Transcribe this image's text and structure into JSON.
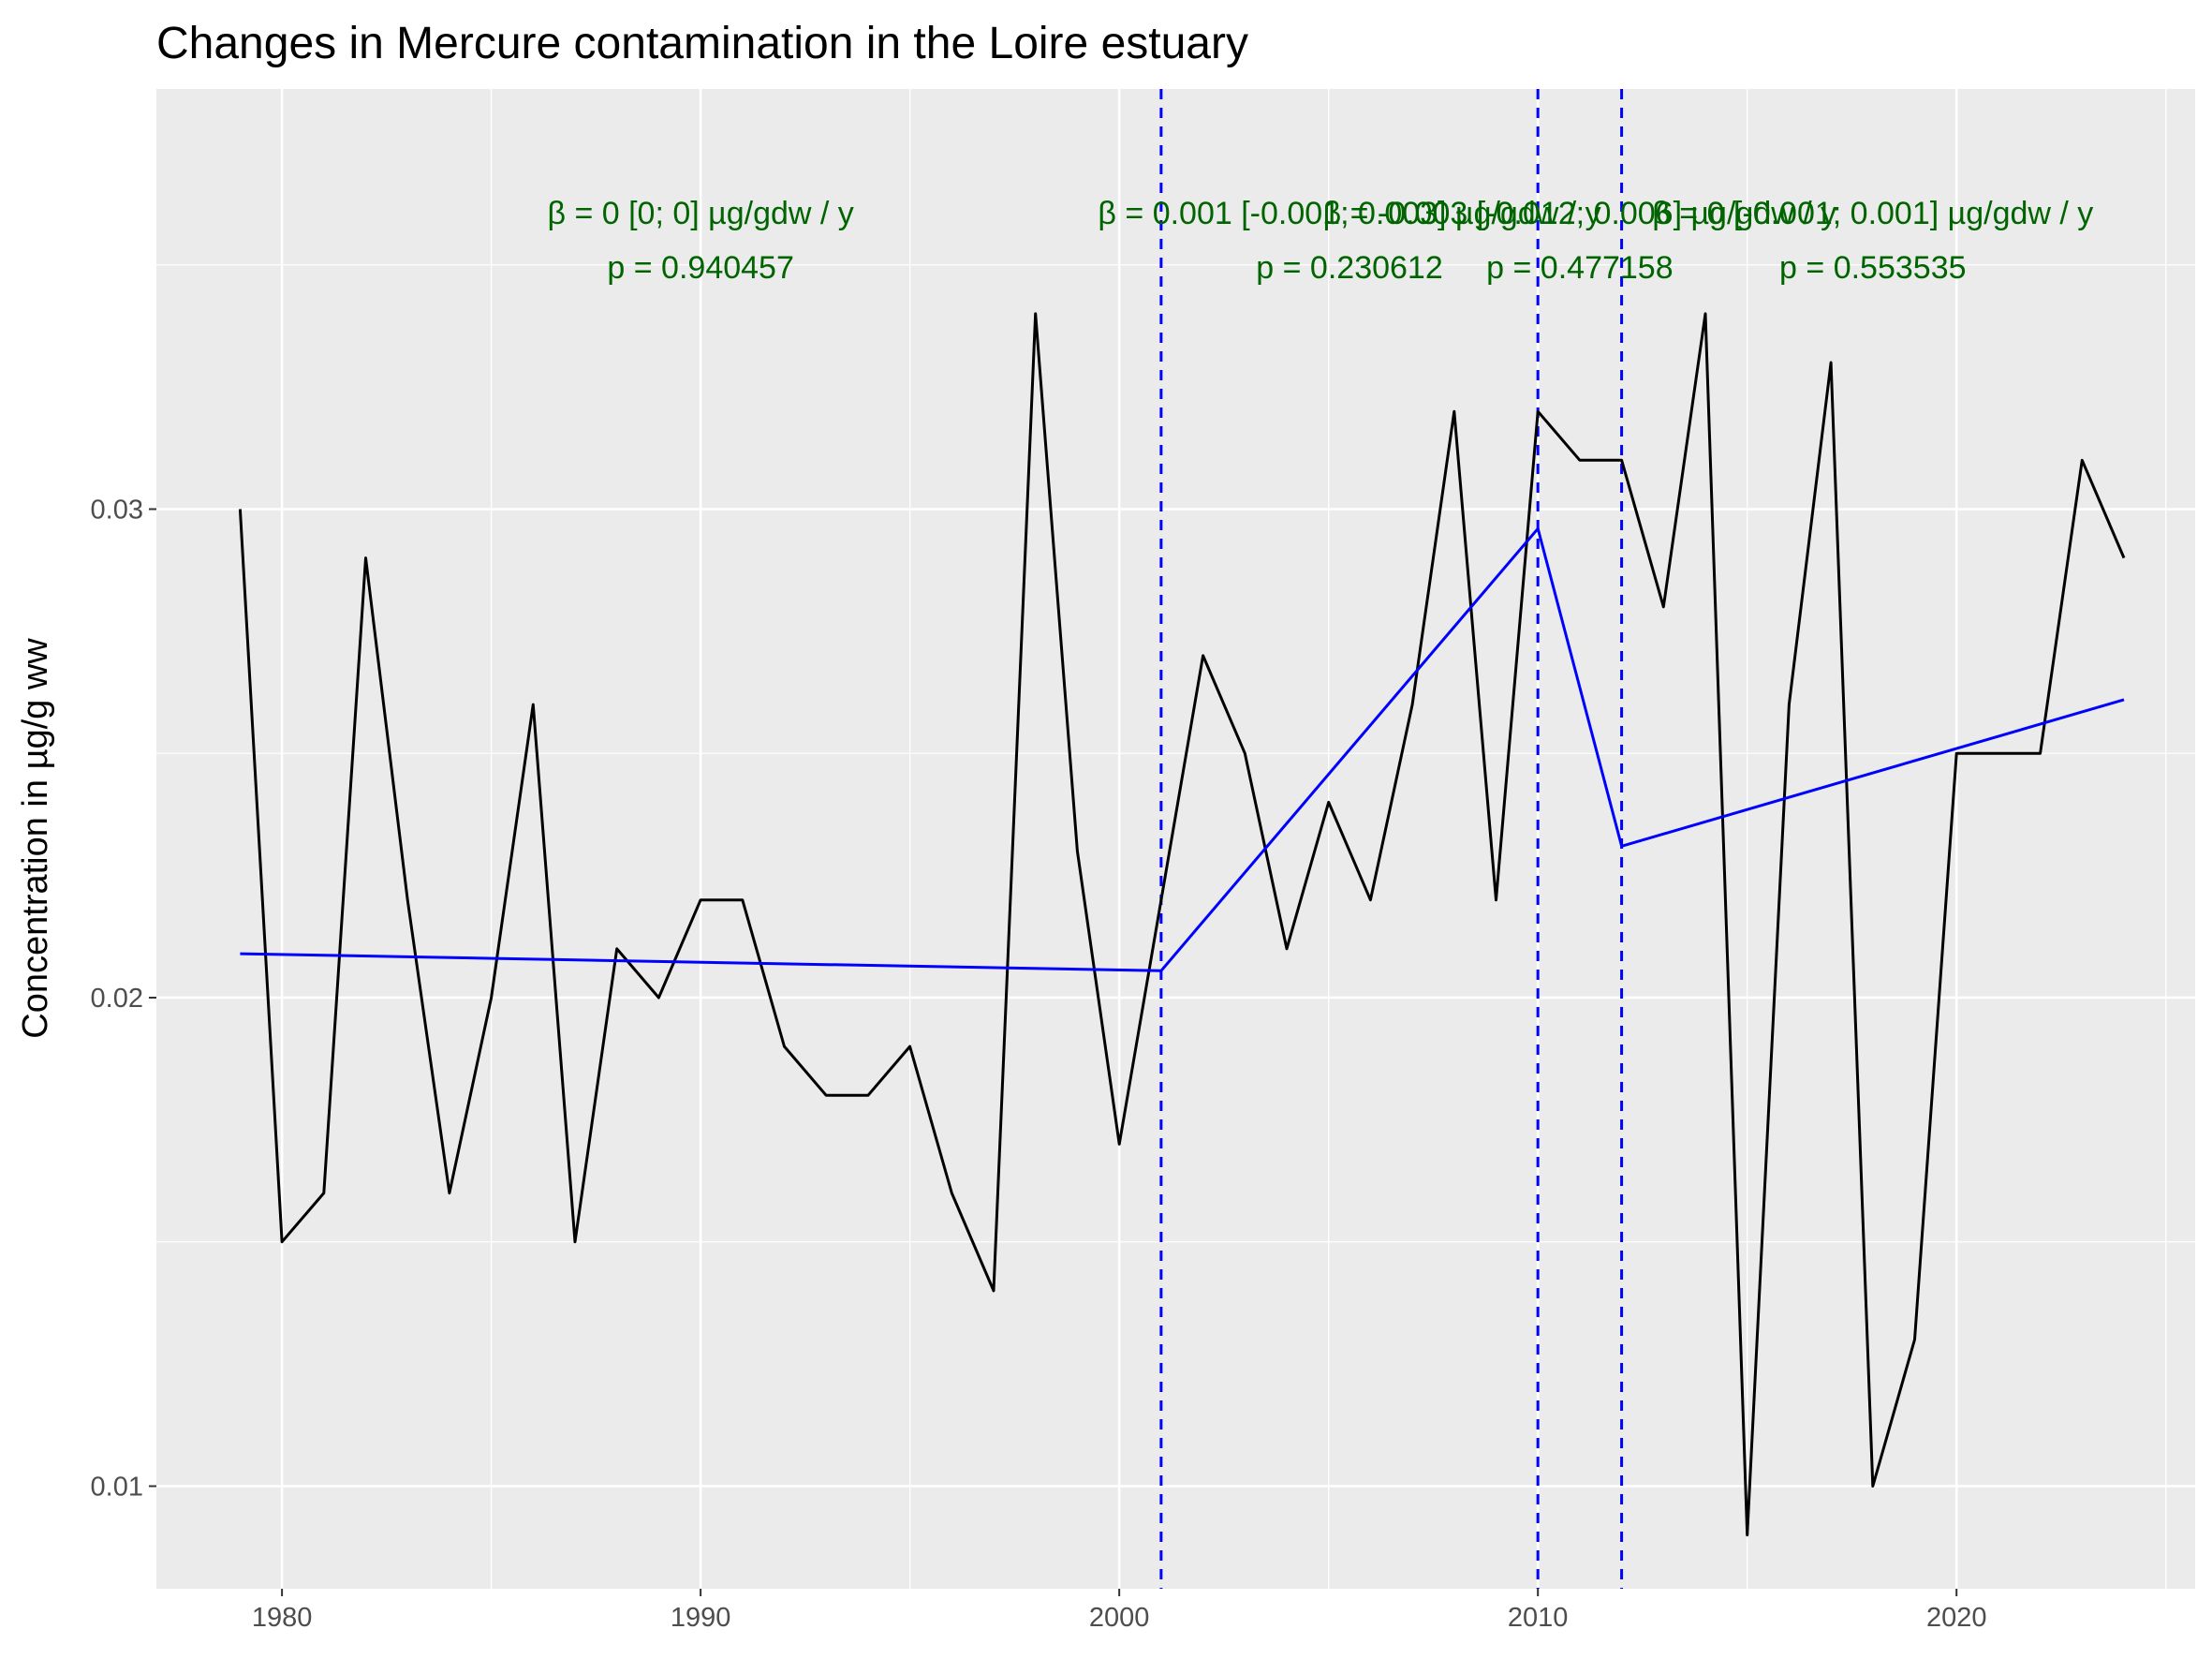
{
  "chart_data": {
    "type": "line",
    "title": "Changes in Mercure contamination in the Loire estuary",
    "xlabel": "",
    "ylabel": "Concentration in µg/g ww",
    "xlim": [
      1977,
      2025.7
    ],
    "ylim": [
      0.0079,
      0.0386
    ],
    "x_ticks": [
      1980,
      1990,
      2000,
      2010,
      2020
    ],
    "x_tick_labels": [
      "1980",
      "1990",
      "2000",
      "2010",
      "2020"
    ],
    "y_ticks": [
      0.01,
      0.02,
      0.03
    ],
    "y_tick_labels": [
      "0.01",
      "0.02",
      "0.03"
    ],
    "grid": true,
    "series": [
      {
        "color": "#000000",
        "points": [
          [
            1979,
            0.03
          ],
          [
            1980,
            0.015
          ],
          [
            1981,
            0.016
          ],
          [
            1982,
            0.029
          ],
          [
            1983,
            0.022
          ],
          [
            1984,
            0.016
          ],
          [
            1985,
            0.02
          ],
          [
            1986,
            0.026
          ],
          [
            1987,
            0.015
          ],
          [
            1988,
            0.021
          ],
          [
            1989,
            0.02
          ],
          [
            1990,
            0.022
          ],
          [
            1991,
            0.022
          ],
          [
            1992,
            0.019
          ],
          [
            1993,
            0.018
          ],
          [
            1994,
            0.018
          ],
          [
            1995,
            0.019
          ],
          [
            1996,
            0.016
          ],
          [
            1997,
            0.014
          ],
          [
            1998,
            0.034
          ],
          [
            1999,
            0.023
          ],
          [
            2000,
            0.017
          ],
          [
            2001,
            0.022
          ],
          [
            2002,
            0.027
          ],
          [
            2003,
            0.025
          ],
          [
            2004,
            0.021
          ],
          [
            2005,
            0.024
          ],
          [
            2006,
            0.022
          ],
          [
            2007,
            0.026
          ],
          [
            2008,
            0.032
          ],
          [
            2009,
            0.022
          ],
          [
            2010,
            0.032
          ],
          [
            2011,
            0.031
          ],
          [
            2012,
            0.031
          ],
          [
            2013,
            0.028
          ],
          [
            2014,
            0.034
          ],
          [
            2015,
            0.009
          ],
          [
            2016,
            0.026
          ],
          [
            2017,
            0.033
          ],
          [
            2018,
            0.01
          ],
          [
            2019,
            0.013
          ],
          [
            2020,
            0.025
          ],
          [
            2021,
            0.025
          ],
          [
            2022,
            0.025
          ],
          [
            2023,
            0.031
          ],
          [
            2024,
            0.029
          ]
        ]
      },
      {
        "color": "#0000ff",
        "points": [
          [
            1979,
            0.0209
          ],
          [
            2001,
            0.02055
          ],
          [
            2010,
            0.0296
          ],
          [
            2012,
            0.0231
          ],
          [
            2024,
            0.0261
          ]
        ]
      }
    ],
    "breakpoints": [
      2001,
      2010,
      2012
    ],
    "breakpoint_color": "#0000ff",
    "annotations": [
      {
        "x": 1990,
        "line1": "β = 0 [0; 0] µg/gdw / y",
        "line2": "p = 0.940457"
      },
      {
        "x": 2005.5,
        "line1": "β = 0.001 [-0.001; 0.003] µg/gdw / y",
        "line2": "p = 0.230612"
      },
      {
        "x": 2011,
        "line1": "β = -0.003 [-0.012; 0.006] µg/gdw / y",
        "line2": "p = 0.477158"
      },
      {
        "x": 2018,
        "line1": "β = 0 [-0.001; 0.001] µg/gdw / y",
        "line2": "p = 0.553535"
      }
    ],
    "annotation_color": "#006400"
  }
}
